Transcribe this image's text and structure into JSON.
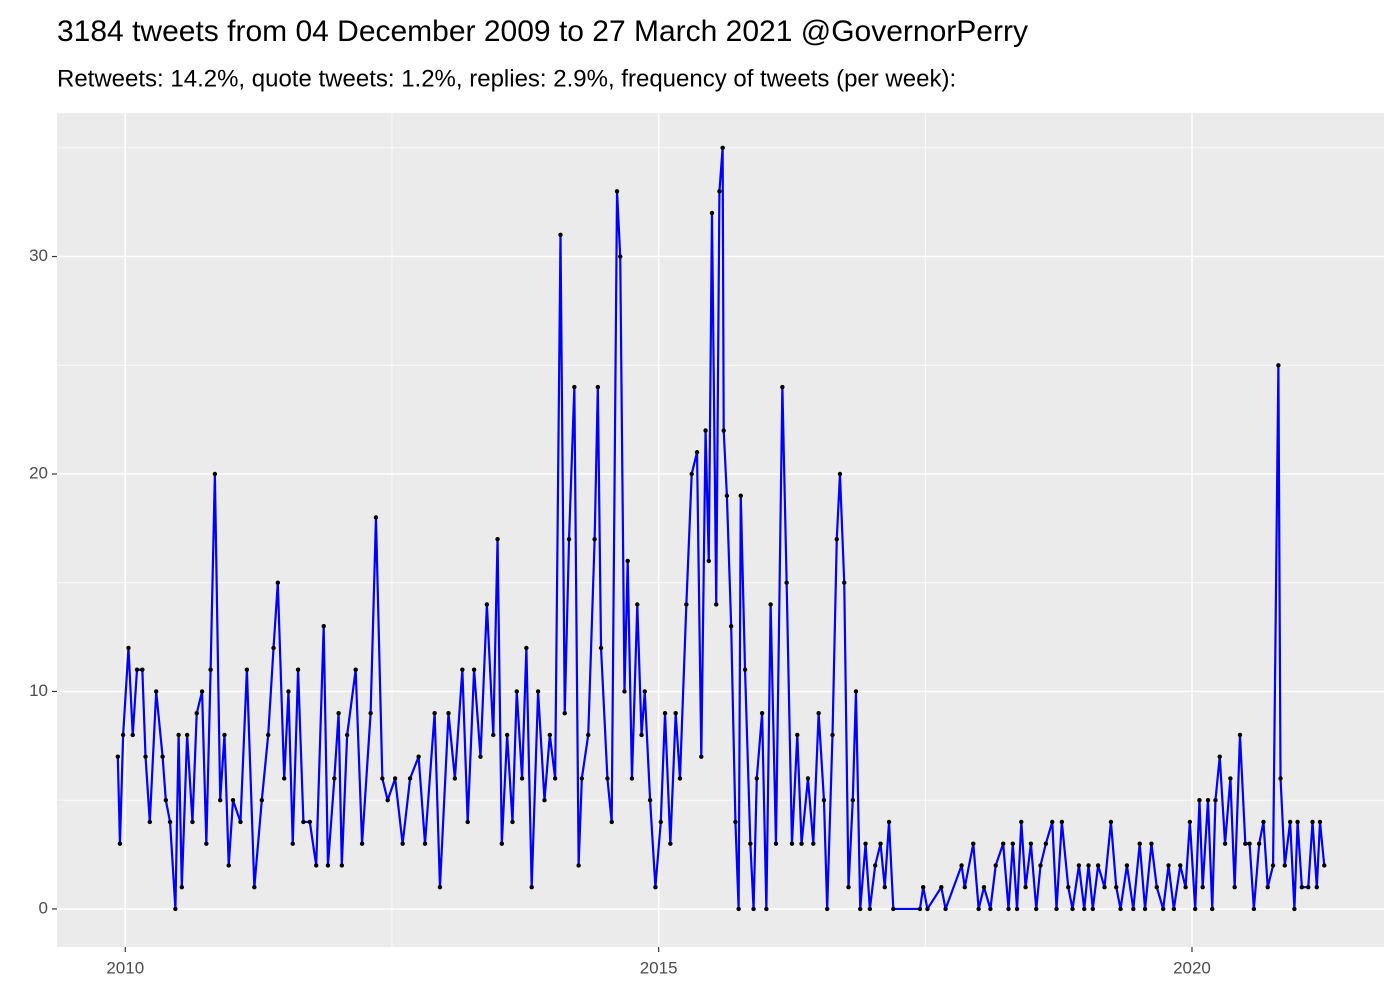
{
  "chart_data": {
    "type": "line",
    "title": "3184 tweets from 04 December 2009 to 27 March 2021 @GovernorPerry",
    "subtitle": "Retweets: 14.2%, quote tweets: 1.2%, replies: 2.9%, frequency of tweets (per week):",
    "x": [
      2009.93,
      2009.95,
      2009.98,
      2010.03,
      2010.07,
      2010.11,
      2010.16,
      2010.19,
      2010.23,
      2010.29,
      2010.35,
      2010.38,
      2010.42,
      2010.47,
      2010.5,
      2010.53,
      2010.58,
      2010.63,
      2010.67,
      2010.72,
      2010.76,
      2010.8,
      2010.84,
      2010.89,
      2010.93,
      2010.97,
      2011.01,
      2011.08,
      2011.14,
      2011.21,
      2011.28,
      2011.34,
      2011.39,
      2011.43,
      2011.49,
      2011.53,
      2011.57,
      2011.62,
      2011.67,
      2011.73,
      2011.79,
      2011.86,
      2011.9,
      2011.96,
      2012.0,
      2012.03,
      2012.08,
      2012.16,
      2012.22,
      2012.3,
      2012.35,
      2012.41,
      2012.46,
      2012.53,
      2012.6,
      2012.67,
      2012.75,
      2012.81,
      2012.9,
      2012.95,
      2013.03,
      2013.09,
      2013.16,
      2013.21,
      2013.27,
      2013.33,
      2013.39,
      2013.45,
      2013.49,
      2013.53,
      2013.58,
      2013.63,
      2013.67,
      2013.72,
      2013.76,
      2013.81,
      2013.87,
      2013.93,
      2013.98,
      2014.03,
      2014.08,
      2014.12,
      2014.16,
      2014.21,
      2014.25,
      2014.28,
      2014.34,
      2014.4,
      2014.43,
      2014.46,
      2014.52,
      2014.56,
      2014.61,
      2014.64,
      2014.68,
      2014.71,
      2014.75,
      2014.8,
      2014.84,
      2014.87,
      2014.92,
      2014.97,
      2015.02,
      2015.06,
      2015.11,
      2015.16,
      2015.2,
      2015.26,
      2015.31,
      2015.36,
      2015.4,
      2015.44,
      2015.47,
      2015.5,
      2015.54,
      2015.57,
      2015.6,
      2015.61,
      2015.64,
      2015.68,
      2015.72,
      2015.75,
      2015.77,
      2015.81,
      2015.86,
      2015.89,
      2015.92,
      2015.97,
      2016.01,
      2016.05,
      2016.1,
      2016.16,
      2016.2,
      2016.25,
      2016.3,
      2016.34,
      2016.4,
      2016.45,
      2016.5,
      2016.55,
      2016.58,
      2016.63,
      2016.67,
      2016.7,
      2016.74,
      2016.78,
      2016.82,
      2016.85,
      2016.89,
      2016.94,
      2016.98,
      2017.03,
      2017.08,
      2017.12,
      2017.16,
      2017.2,
      2017.45,
      2017.48,
      2017.52,
      2017.65,
      2017.69,
      2017.84,
      2017.87,
      2017.95,
      2018.0,
      2018.05,
      2018.11,
      2018.16,
      2018.23,
      2018.28,
      2018.32,
      2018.36,
      2018.4,
      2018.44,
      2018.49,
      2018.54,
      2018.58,
      2018.63,
      2018.69,
      2018.73,
      2018.78,
      2018.84,
      2018.88,
      2018.94,
      2018.99,
      2019.03,
      2019.07,
      2019.12,
      2019.18,
      2019.24,
      2019.29,
      2019.33,
      2019.39,
      2019.45,
      2019.51,
      2019.56,
      2019.62,
      2019.67,
      2019.73,
      2019.78,
      2019.83,
      2019.89,
      2019.94,
      2019.98,
      2020.03,
      2020.07,
      2020.1,
      2020.15,
      2020.19,
      2020.22,
      2020.26,
      2020.31,
      2020.36,
      2020.4,
      2020.45,
      2020.5,
      2020.54,
      2020.58,
      2020.63,
      2020.67,
      2020.71,
      2020.76,
      2020.81,
      2020.83,
      2020.87,
      2020.92,
      2020.96,
      2020.99,
      2021.03,
      2021.09,
      2021.13,
      2021.17,
      2021.2,
      2021.24
    ],
    "values": [
      7,
      3,
      8,
      12,
      8,
      11,
      11,
      7,
      4,
      10,
      7,
      5,
      4,
      0,
      8,
      1,
      8,
      4,
      9,
      10,
      3,
      11,
      20,
      5,
      8,
      2,
      5,
      4,
      11,
      1,
      5,
      8,
      12,
      15,
      6,
      10,
      3,
      11,
      4,
      4,
      2,
      13,
      2,
      6,
      9,
      2,
      8,
      11,
      3,
      9,
      18,
      6,
      5,
      6,
      3,
      6,
      7,
      3,
      9,
      1,
      9,
      6,
      11,
      4,
      11,
      7,
      14,
      8,
      17,
      3,
      8,
      4,
      10,
      6,
      12,
      1,
      10,
      5,
      8,
      6,
      31,
      9,
      17,
      24,
      2,
      6,
      8,
      17,
      24,
      12,
      6,
      4,
      33,
      30,
      10,
      16,
      6,
      14,
      8,
      10,
      5,
      1,
      4,
      9,
      3,
      9,
      6,
      14,
      20,
      21,
      7,
      22,
      16,
      32,
      14,
      33,
      35,
      22,
      19,
      13,
      4,
      0,
      19,
      11,
      3,
      0,
      6,
      9,
      0,
      14,
      3,
      24,
      15,
      3,
      8,
      3,
      6,
      3,
      9,
      5,
      0,
      8,
      17,
      20,
      15,
      1,
      5,
      10,
      0,
      3,
      0,
      2,
      3,
      1,
      4,
      0,
      0,
      1,
      0,
      1,
      0,
      2,
      1,
      3,
      0,
      1,
      0,
      2,
      3,
      0,
      3,
      0,
      4,
      1,
      3,
      0,
      2,
      3,
      4,
      0,
      4,
      1,
      0,
      2,
      0,
      2,
      0,
      2,
      1,
      4,
      1,
      0,
      2,
      0,
      3,
      0,
      3,
      1,
      0,
      2,
      0,
      2,
      1,
      4,
      0,
      5,
      1,
      5,
      0,
      5,
      7,
      3,
      6,
      1,
      8,
      3,
      3,
      0,
      3,
      4,
      1,
      2,
      25,
      6,
      2,
      4,
      0,
      4,
      1,
      1,
      4,
      1,
      4,
      2
    ],
    "color": "#0000ff",
    "marker_color": "#000000",
    "xlim": [
      2009.36,
      2021.8
    ],
    "ylim": [
      -1.75,
      36.6
    ],
    "xticks": [
      2010,
      2015,
      2020
    ],
    "yticks": [
      0,
      10,
      20,
      30
    ],
    "x_minor_ticks": [
      2012.5,
      2017.5
    ],
    "y_minor_ticks": [
      5,
      15,
      25,
      35
    ],
    "grid": true
  }
}
